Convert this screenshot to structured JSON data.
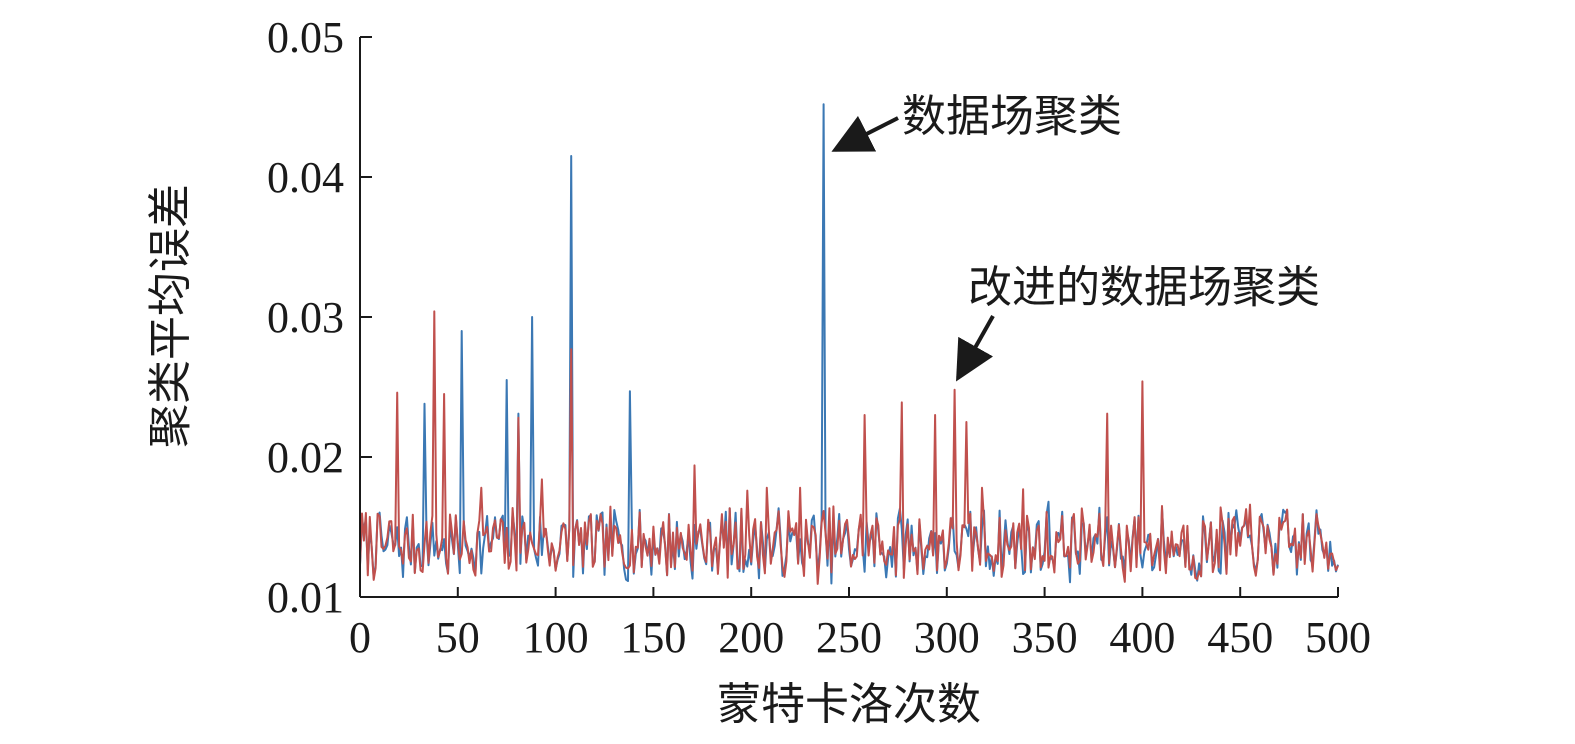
{
  "chart_data": {
    "type": "line",
    "xlabel": "蒙特卡洛次数",
    "ylabel": "聚类平均误差",
    "xlim": [
      0,
      500
    ],
    "ylim": [
      0.01,
      0.05
    ],
    "xticks": [
      0,
      50,
      100,
      150,
      200,
      250,
      300,
      350,
      400,
      450,
      500
    ],
    "yticks": [
      0.01,
      0.02,
      0.03,
      0.04,
      0.05
    ],
    "ytick_labels": [
      "0.01",
      "0.02",
      "0.03",
      "0.04",
      "0.05"
    ],
    "grid": false,
    "legend": "none",
    "baseline_range": [
      0.0115,
      0.016
    ],
    "series": [
      {
        "name": "数据场聚类",
        "color": "#3b78b4",
        "peaks": [
          {
            "x": 33,
            "y": 0.0238
          },
          {
            "x": 52,
            "y": 0.029
          },
          {
            "x": 75,
            "y": 0.0255
          },
          {
            "x": 81,
            "y": 0.0231
          },
          {
            "x": 88,
            "y": 0.03
          },
          {
            "x": 108,
            "y": 0.0415
          },
          {
            "x": 138,
            "y": 0.0247
          },
          {
            "x": 237,
            "y": 0.0452
          },
          {
            "x": 352,
            "y": 0.0168
          },
          {
            "x": 448,
            "y": 0.0162
          }
        ]
      },
      {
        "name": "改进的数据场聚类",
        "color": "#c0504d",
        "peaks": [
          {
            "x": 19,
            "y": 0.0246
          },
          {
            "x": 38,
            "y": 0.0304
          },
          {
            "x": 43,
            "y": 0.0245
          },
          {
            "x": 62,
            "y": 0.0178
          },
          {
            "x": 81,
            "y": 0.0228
          },
          {
            "x": 93,
            "y": 0.0184
          },
          {
            "x": 108,
            "y": 0.0277
          },
          {
            "x": 171,
            "y": 0.0194
          },
          {
            "x": 198,
            "y": 0.0176
          },
          {
            "x": 208,
            "y": 0.0178
          },
          {
            "x": 225,
            "y": 0.0178
          },
          {
            "x": 258,
            "y": 0.023
          },
          {
            "x": 277,
            "y": 0.0239
          },
          {
            "x": 294,
            "y": 0.023
          },
          {
            "x": 304,
            "y": 0.0248
          },
          {
            "x": 310,
            "y": 0.0225
          },
          {
            "x": 318,
            "y": 0.0178
          },
          {
            "x": 339,
            "y": 0.0177
          },
          {
            "x": 382,
            "y": 0.0231
          },
          {
            "x": 400,
            "y": 0.0254
          },
          {
            "x": 410,
            "y": 0.0165
          },
          {
            "x": 440,
            "y": 0.0164
          },
          {
            "x": 455,
            "y": 0.0166
          }
        ]
      }
    ],
    "annotations": [
      {
        "text": "数据场聚类",
        "target_x": 237,
        "target_y": 0.0434
      },
      {
        "text": "改进的数据场聚类",
        "target_x": 304,
        "target_y": 0.0251
      }
    ]
  }
}
